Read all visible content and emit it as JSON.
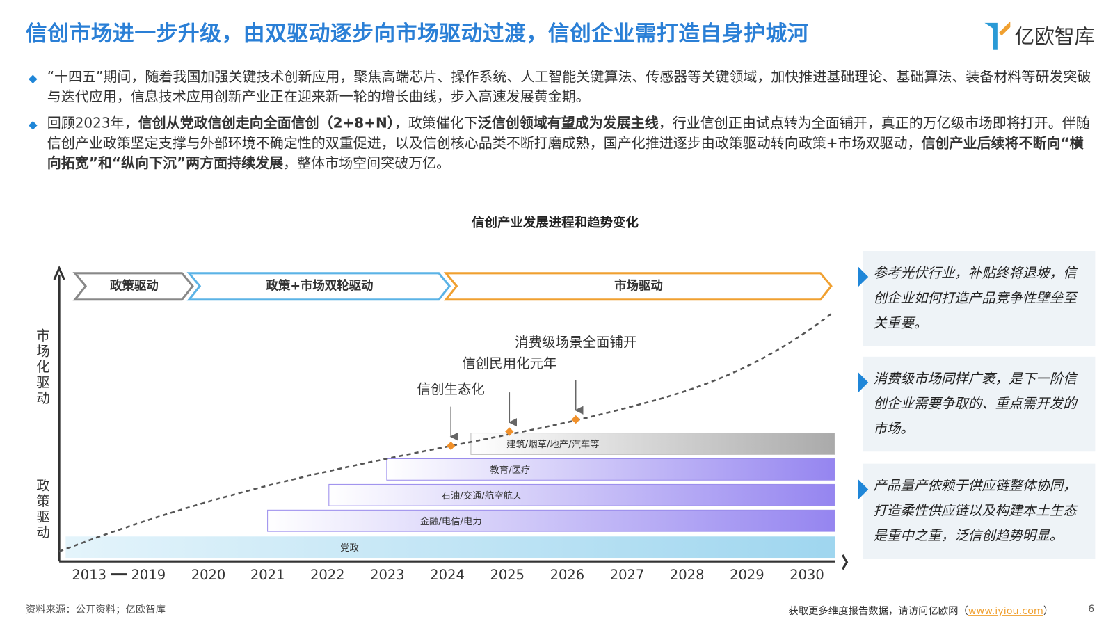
{
  "header": {
    "title": "信创市场进一步升级，由双驱动逐步向市场驱动过渡，信创企业需打造自身护城河",
    "logo": "亿欧智库"
  },
  "bullets": [
    {
      "segments": [
        {
          "text": "“十四五”期间，随着我国加强关键技术创新应用，聚焦高端芯片、操作系统、人工智能关键算法、传感器等关键领域，加快推进基础理论、基础算法、装备材料等研发突破与迭代应用，信息技术应用创新产业正在迎来新一轮的增长曲线，步入高速发展黄金期。",
          "bold": false
        }
      ]
    },
    {
      "segments": [
        {
          "text": "回顾2023年，",
          "bold": false
        },
        {
          "text": "信创从党政信创走向全面信创（2+8+N）",
          "bold": true
        },
        {
          "text": "，政策催化下",
          "bold": false
        },
        {
          "text": "泛信创领域有望成为发展主线",
          "bold": true
        },
        {
          "text": "，行业信创正由试点转为全面铺开，真正的万亿级市场即将打开。伴随信创产业政策坚定支撑与外部环境不确定性的双重促进，以及信创核心品类不断打磨成熟，国产化推进逐步由政策驱动转向政策+市场双驱动，",
          "bold": false
        },
        {
          "text": "信创产业后续将不断向“横向拓宽”和“纵向下沉”两方面持续发展",
          "bold": true
        },
        {
          "text": "，整体市场空间突破万亿。",
          "bold": false
        }
      ]
    }
  ],
  "diagram": {
    "title": "信创产业发展进程和趋势变化",
    "y_axis_labels": [
      "市场化驱动",
      "政策驱动"
    ],
    "phases": [
      "政策驱动",
      "政策+市场双轮驱动",
      "市场驱动"
    ],
    "milestones": [
      "信创生态化",
      "信创民用化元年",
      "消费级场景全面铺开"
    ],
    "sectors": [
      "建筑/烟草/地产/汽车等",
      "教育/医疗",
      "石油/交通/航空航天",
      "金融/电信/电力",
      "党政"
    ],
    "x_labels": [
      "2013",
      "2019",
      "2020",
      "2021",
      "2022",
      "2023",
      "2024",
      "2025",
      "2026",
      "2027",
      "2028",
      "2029",
      "2030"
    ]
  },
  "notes": [
    "参考光伏行业，补贴终将退坡，信创企业如何打造产品竞争性壁垒至关重要。",
    "消费级市场同样广袤，是下一阶信创企业需要争取的、重点需开发的市场。",
    "产品量产依赖于供应链整体协同，打造柔性供应链以及构建本土生态是重中之重，泛信创趋势明显。"
  ],
  "footer": {
    "source": "资料来源：公开资料；亿欧智库",
    "visit_prefix": "获取更多维度报告数据，请访问亿欧网（",
    "link": "www.iyiou.com",
    "visit_suffix": "）",
    "page": "6"
  }
}
